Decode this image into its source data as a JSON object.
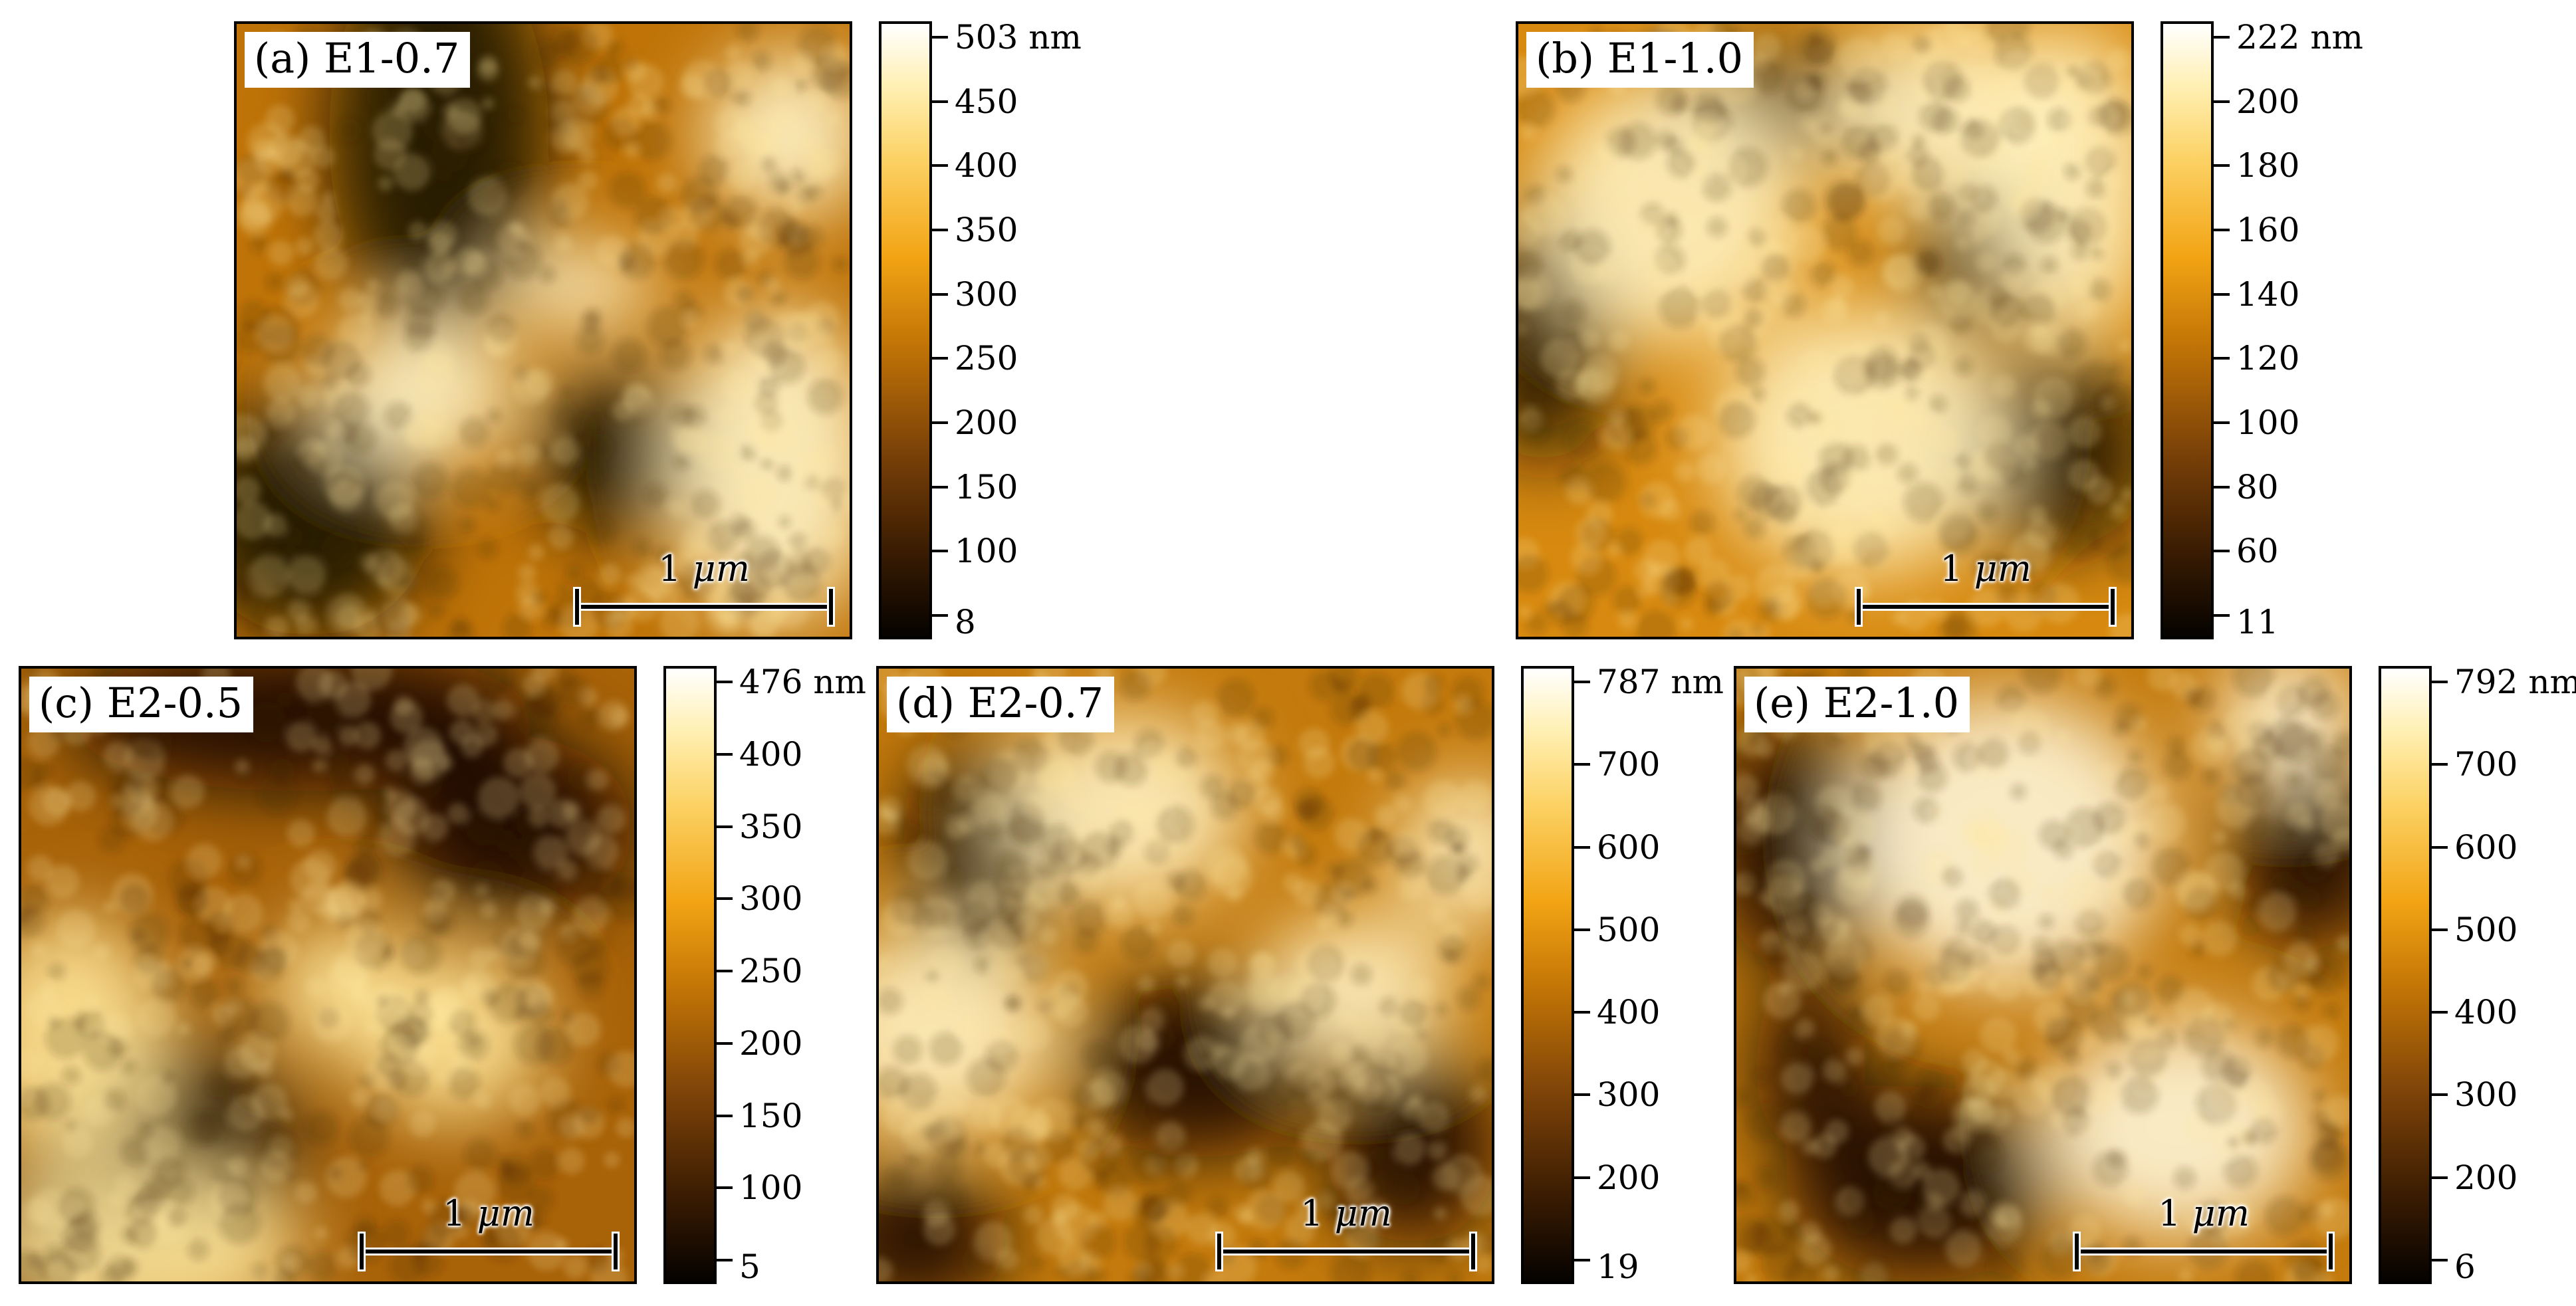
{
  "panels": [
    {
      "label": "(a) E1-0.7",
      "scalebar": {
        "value": "1",
        "unit": "μm"
      },
      "colorbar": {
        "top": "503 nm",
        "ticks": [
          "450",
          "400",
          "350",
          "300",
          "250",
          "200",
          "150",
          "100"
        ],
        "bottom": "8"
      },
      "palette": {
        "dark": "#120800",
        "mid": "#c07408",
        "bright": "#fff4c8"
      }
    },
    {
      "label": "(b) E1-1.0",
      "scalebar": {
        "value": "1",
        "unit": "μm"
      },
      "colorbar": {
        "top": "222 nm",
        "ticks": [
          "200",
          "180",
          "160",
          "140",
          "120",
          "100",
          "80",
          "60"
        ],
        "bottom": "11"
      },
      "palette": {
        "dark": "#180a00",
        "mid": "#d88a10",
        "bright": "#fff2c0"
      }
    },
    {
      "label": "(c) E2-0.5",
      "scalebar": {
        "value": "1",
        "unit": "μm"
      },
      "colorbar": {
        "top": "476 nm",
        "ticks": [
          "400",
          "350",
          "300",
          "250",
          "200",
          "150",
          "100"
        ],
        "bottom": "5"
      },
      "palette": {
        "dark": "#100600",
        "mid": "#a86208",
        "bright": "#ffe79a"
      }
    },
    {
      "label": "(d) E2-0.7",
      "scalebar": {
        "value": "1",
        "unit": "μm"
      },
      "colorbar": {
        "top": "787 nm",
        "ticks": [
          "700",
          "600",
          "500",
          "400",
          "300",
          "200"
        ],
        "bottom": "19"
      },
      "palette": {
        "dark": "#0c0500",
        "mid": "#c47a0c",
        "bright": "#fff1c0"
      }
    },
    {
      "label": "(e) E2-1.0",
      "scalebar": {
        "value": "1",
        "unit": "μm"
      },
      "colorbar": {
        "top": "792 nm",
        "ticks": [
          "700",
          "600",
          "500",
          "400",
          "300",
          "200"
        ],
        "bottom": "6"
      },
      "palette": {
        "dark": "#0e0600",
        "mid": "#c47a0c",
        "bright": "#fff6d8"
      }
    }
  ]
}
